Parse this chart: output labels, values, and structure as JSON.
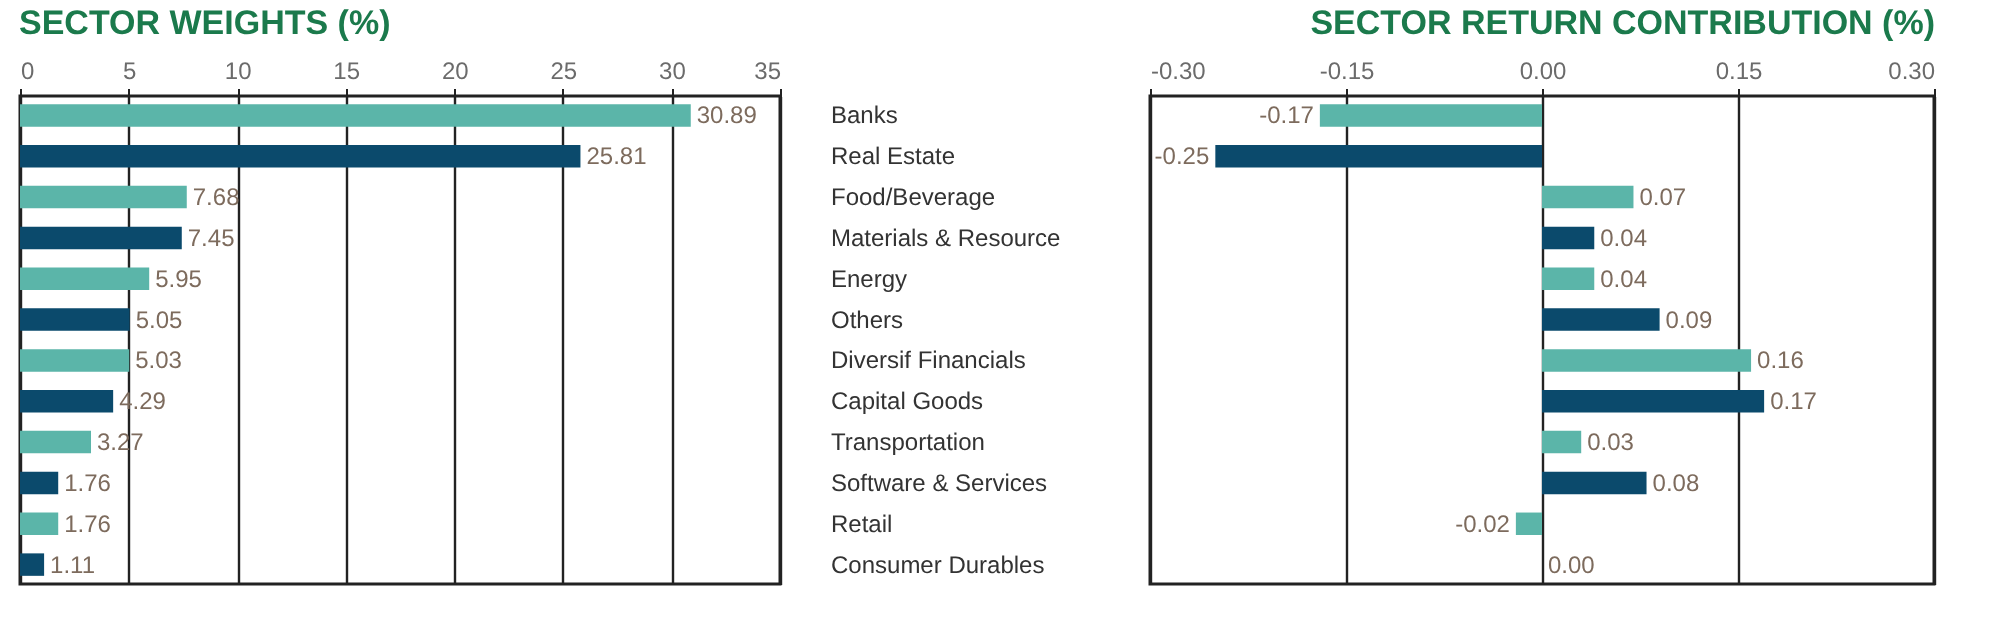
{
  "chart_data": [
    {
      "type": "bar",
      "orientation": "horizontal",
      "title": "SECTOR WEIGHTS (%)",
      "categories": [
        null,
        null,
        null,
        null,
        null,
        null,
        null,
        null,
        null,
        null,
        null,
        null
      ],
      "values": [
        30.89,
        25.81,
        7.68,
        7.45,
        5.95,
        5.05,
        5.03,
        4.29,
        3.27,
        1.76,
        1.76,
        1.11
      ],
      "value_labels": [
        "30.89",
        "25.81",
        "7.68",
        "7.45",
        "5.95",
        "5.05",
        "5.03",
        "4.29",
        "3.27",
        "1.76",
        "1.76",
        "1.11"
      ],
      "colors": [
        "#5bb5a9",
        "#0b4a6c",
        "#5bb5a9",
        "#0b4a6c",
        "#5bb5a9",
        "#0b4a6c",
        "#5bb5a9",
        "#0b4a6c",
        "#5bb5a9",
        "#0b4a6c",
        "#5bb5a9",
        "#0b4a6c"
      ],
      "xlim": [
        0,
        35
      ],
      "xticks": [
        0,
        5,
        10,
        15,
        20,
        25,
        30,
        35
      ],
      "grid": "x",
      "tick_labels": "x"
    },
    {
      "type": "bar",
      "orientation": "horizontal",
      "title": "SECTOR RETURN CONTRIBUTION (%)",
      "categories": [
        "Banks",
        "Real Estate",
        "Food/Beverage",
        "Materials & Resource",
        "Energy",
        "Others",
        "Diversif Financials",
        "Capital Goods",
        "Transportation",
        "Software & Services",
        "Retail",
        "Consumer Durables"
      ],
      "values": [
        -0.17,
        -0.25,
        0.07,
        0.04,
        0.04,
        0.09,
        0.16,
        0.17,
        0.03,
        0.08,
        -0.02,
        0.0
      ],
      "value_labels": [
        "-0.17",
        "-0.25",
        "0.07",
        "0.04",
        "0.04",
        "0.09",
        "0.16",
        "0.17",
        "0.03",
        "0.08",
        "-0.02",
        "0.00"
      ],
      "colors": [
        "#5bb5a9",
        "#0b4a6c",
        "#5bb5a9",
        "#0b4a6c",
        "#5bb5a9",
        "#0b4a6c",
        "#5bb5a9",
        "#0b4a6c",
        "#5bb5a9",
        "#0b4a6c",
        "#5bb5a9",
        "#0b4a6c"
      ],
      "xlim": [
        -0.3,
        0.3
      ],
      "xticks": [
        {
          "value": -0.3,
          "label": "-0.30"
        },
        {
          "value": -0.15,
          "label": "-0.15"
        },
        {
          "value": 0,
          "label": "0.00"
        },
        {
          "value": 0.15,
          "label": "0.15"
        },
        {
          "value": 0.3,
          "label": "0.30"
        }
      ],
      "grid": "x"
    }
  ]
}
